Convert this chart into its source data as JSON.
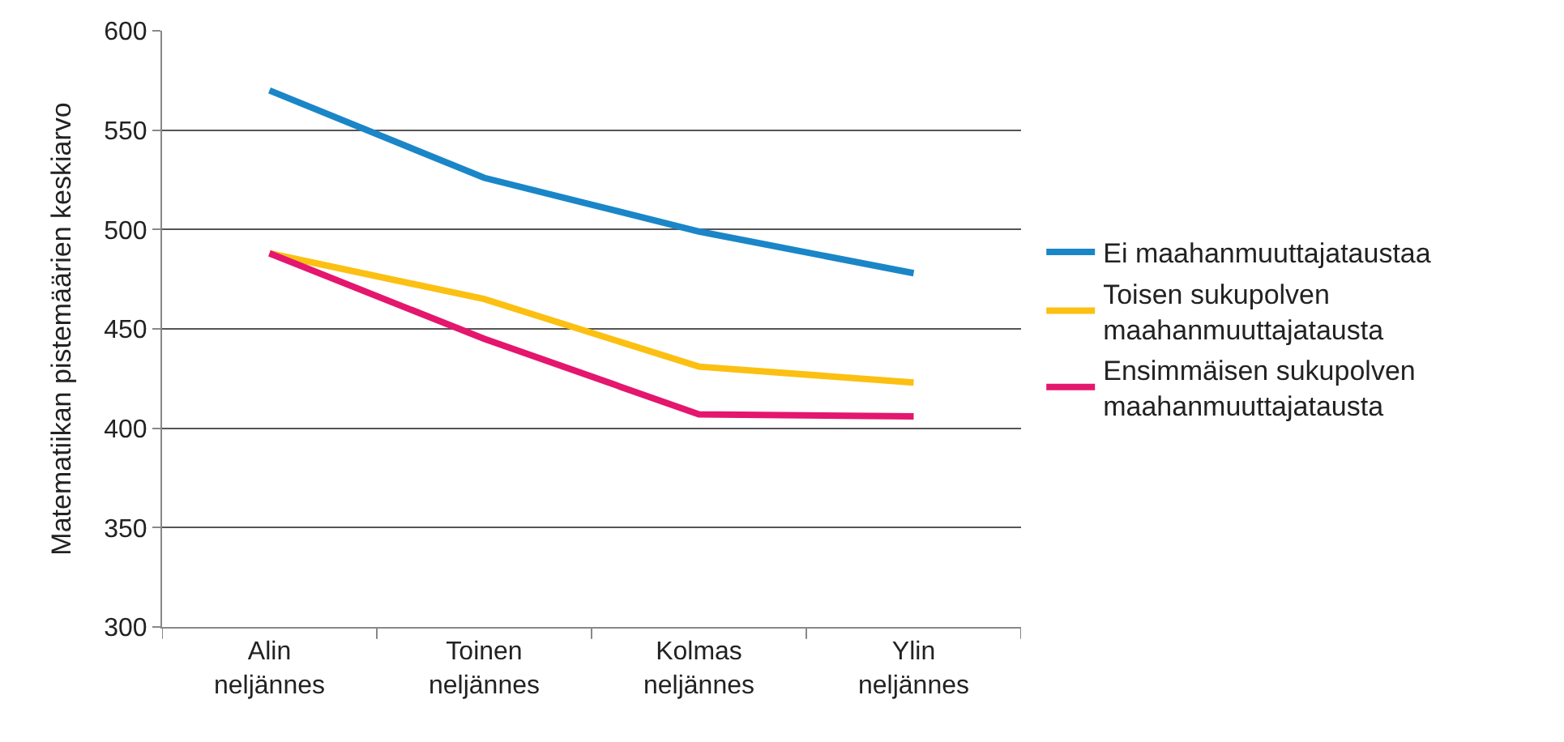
{
  "chart_data": {
    "type": "line",
    "ylabel": "Matematiikan pistemäärien keskiarvo",
    "categories": [
      "Alin neljännes",
      "Toinen neljännes",
      "Kolmas neljännes",
      "Ylin neljännes"
    ],
    "series": [
      {
        "name": "Ei maahanmuuttajataustaa",
        "color": "#1a86c8",
        "values": [
          570,
          526,
          499,
          478
        ]
      },
      {
        "name": "Toisen sukupolven maahanmuuttajatausta",
        "color": "#fcc012",
        "values": [
          488,
          465,
          431,
          423
        ]
      },
      {
        "name": "Ensimmäisen sukupolven maahanmuuttajatausta",
        "color": "#e4166e",
        "values": [
          488,
          445,
          407,
          406
        ]
      }
    ],
    "ylim": [
      300,
      600
    ],
    "yticks": [
      300,
      350,
      400,
      450,
      500,
      550,
      600
    ],
    "grid": "y",
    "legend": "right",
    "marker": "none",
    "line_style": "solid"
  }
}
